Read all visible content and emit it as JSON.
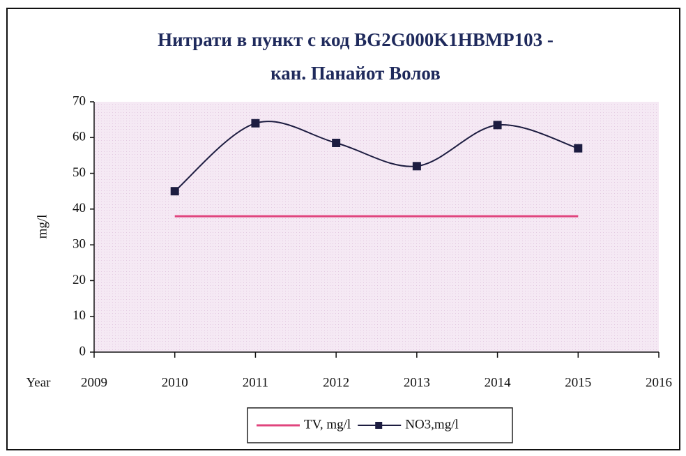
{
  "chart_data": {
    "type": "line",
    "title": [
      "Нитрати в пункт с код BG2G000K1HBMP103 -",
      "кан. Панайот Волов"
    ],
    "xlabel": "Year",
    "ylabel": "mg/l",
    "x": [
      2010,
      2011,
      2012,
      2013,
      2014,
      2015
    ],
    "series": [
      {
        "name": "TV, mg/l",
        "color": "#e0457e",
        "values": [
          38,
          38,
          38,
          38,
          38,
          38
        ],
        "marker": "none",
        "smooth": false
      },
      {
        "name": "NO3,mg/l",
        "color": "#1c1c40",
        "values": [
          45,
          64,
          58.5,
          52,
          63.5,
          57
        ],
        "marker": "square",
        "smooth": true
      }
    ],
    "xlim": [
      2009,
      2016
    ],
    "xticks": [
      2009,
      2010,
      2011,
      2012,
      2013,
      2014,
      2015,
      2016
    ],
    "ylim": [
      0,
      70
    ],
    "yticks": [
      0,
      10,
      20,
      30,
      40,
      50,
      60,
      70
    ],
    "grid": false,
    "legend": "bottom"
  }
}
